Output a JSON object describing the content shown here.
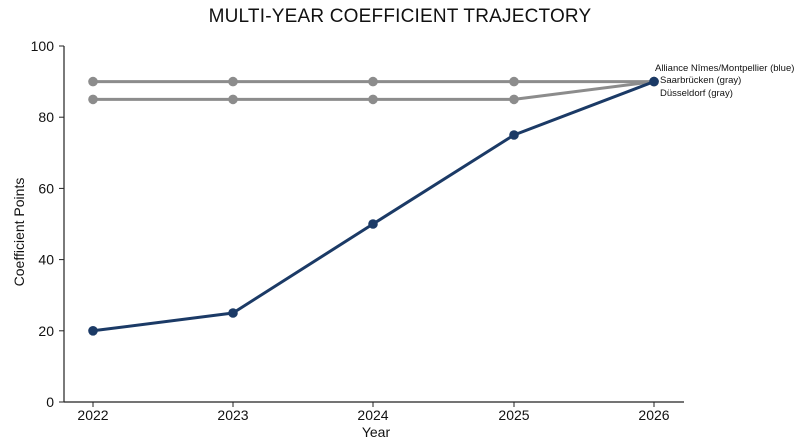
{
  "chart_data": {
    "type": "line",
    "title": "MULTI-YEAR COEFFICIENT TRAJECTORY",
    "xlabel": "Year",
    "ylabel": "Coefficient Points",
    "x": [
      "2022",
      "2023",
      "2024",
      "2025",
      "2026"
    ],
    "ylim": [
      0,
      100
    ],
    "yticks": [
      0,
      20,
      40,
      60,
      80,
      100
    ],
    "grid": false,
    "series": [
      {
        "name": "Alliance Nîmes/Montpellier (blue)",
        "color": "#1b3a66",
        "values": [
          20,
          25,
          50,
          75,
          90
        ]
      },
      {
        "name": "Saarbrücken (gray)",
        "color": "#8c8c8c",
        "values": [
          90,
          90,
          90,
          90,
          90
        ]
      },
      {
        "name": "Düsseldorf (gray)",
        "color": "#8c8c8c",
        "values": [
          85,
          85,
          85,
          85,
          90
        ]
      }
    ]
  }
}
